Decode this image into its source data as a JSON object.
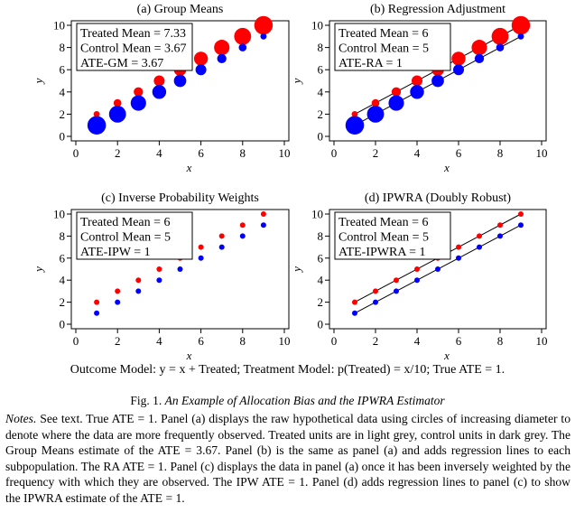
{
  "colors": {
    "treated": "#ff0000",
    "control": "#0000ff",
    "line": "#000000"
  },
  "chart_data": [
    {
      "type": "scatter",
      "title": "(a) Group Means",
      "xlabel": "x",
      "ylabel": "y",
      "xlim": [
        0,
        10
      ],
      "ylim": [
        0,
        10
      ],
      "xticks": [
        0,
        2,
        4,
        6,
        8,
        10
      ],
      "yticks": [
        0,
        2,
        4,
        6,
        8,
        10
      ],
      "annotations": [
        "Treated Mean = 7.33",
        "Control Mean = 3.67",
        "ATE-GM = 3.67"
      ],
      "regression_lines": false,
      "marker_size_encodes": "frequency",
      "series": [
        {
          "group": "treated",
          "x": [
            1,
            2,
            3,
            4,
            5,
            6,
            7,
            8,
            9
          ],
          "y": [
            2,
            3,
            4,
            5,
            6,
            7,
            8,
            9,
            10
          ],
          "size": [
            1,
            2,
            3,
            4,
            5,
            6,
            7,
            8,
            9
          ]
        },
        {
          "group": "control",
          "x": [
            1,
            2,
            3,
            4,
            5,
            6,
            7,
            8,
            9
          ],
          "y": [
            1,
            2,
            3,
            4,
            5,
            6,
            7,
            8,
            9
          ],
          "size": [
            9,
            8,
            7,
            6,
            5,
            4,
            3,
            2,
            1
          ]
        }
      ]
    },
    {
      "type": "scatter",
      "title": "(b) Regression Adjustment",
      "xlabel": "x",
      "ylabel": "y",
      "xlim": [
        0,
        10
      ],
      "ylim": [
        0,
        10
      ],
      "xticks": [
        0,
        2,
        4,
        6,
        8,
        10
      ],
      "yticks": [
        0,
        2,
        4,
        6,
        8,
        10
      ],
      "annotations": [
        "Treated Mean = 6",
        "Control Mean = 5",
        "ATE-RA = 1"
      ],
      "regression_lines": true,
      "marker_size_encodes": "frequency",
      "series": [
        {
          "group": "treated",
          "x": [
            1,
            2,
            3,
            4,
            5,
            6,
            7,
            8,
            9
          ],
          "y": [
            2,
            3,
            4,
            5,
            6,
            7,
            8,
            9,
            10
          ],
          "size": [
            1,
            2,
            3,
            4,
            5,
            6,
            7,
            8,
            9
          ]
        },
        {
          "group": "control",
          "x": [
            1,
            2,
            3,
            4,
            5,
            6,
            7,
            8,
            9
          ],
          "y": [
            1,
            2,
            3,
            4,
            5,
            6,
            7,
            8,
            9
          ],
          "size": [
            9,
            8,
            7,
            6,
            5,
            4,
            3,
            2,
            1
          ]
        }
      ]
    },
    {
      "type": "scatter",
      "title": "(c) Inverse Probability Weights",
      "xlabel": "x",
      "ylabel": "y",
      "xlim": [
        0,
        10
      ],
      "ylim": [
        0,
        10
      ],
      "xticks": [
        0,
        2,
        4,
        6,
        8,
        10
      ],
      "yticks": [
        0,
        2,
        4,
        6,
        8,
        10
      ],
      "annotations": [
        "Treated Mean = 6",
        "Control Mean = 5",
        "ATE-IPW = 1"
      ],
      "regression_lines": false,
      "marker_size_encodes": "equal weights",
      "series": [
        {
          "group": "treated",
          "x": [
            1,
            2,
            3,
            4,
            5,
            6,
            7,
            8,
            9
          ],
          "y": [
            2,
            3,
            4,
            5,
            6,
            7,
            8,
            9,
            10
          ],
          "size": [
            1,
            1,
            1,
            1,
            1,
            1,
            1,
            1,
            1
          ]
        },
        {
          "group": "control",
          "x": [
            1,
            2,
            3,
            4,
            5,
            6,
            7,
            8,
            9
          ],
          "y": [
            1,
            2,
            3,
            4,
            5,
            6,
            7,
            8,
            9
          ],
          "size": [
            1,
            1,
            1,
            1,
            1,
            1,
            1,
            1,
            1
          ]
        }
      ]
    },
    {
      "type": "scatter",
      "title": "(d) IPWRA (Doubly Robust)",
      "xlabel": "x",
      "ylabel": "y",
      "xlim": [
        0,
        10
      ],
      "ylim": [
        0,
        10
      ],
      "xticks": [
        0,
        2,
        4,
        6,
        8,
        10
      ],
      "yticks": [
        0,
        2,
        4,
        6,
        8,
        10
      ],
      "annotations": [
        "Treated Mean = 6",
        "Control Mean = 5",
        "ATE-IPWRA = 1"
      ],
      "regression_lines": true,
      "marker_size_encodes": "equal weights",
      "series": [
        {
          "group": "treated",
          "x": [
            1,
            2,
            3,
            4,
            5,
            6,
            7,
            8,
            9
          ],
          "y": [
            2,
            3,
            4,
            5,
            6,
            7,
            8,
            9,
            10
          ],
          "size": [
            1,
            1,
            1,
            1,
            1,
            1,
            1,
            1,
            1
          ]
        },
        {
          "group": "control",
          "x": [
            1,
            2,
            3,
            4,
            5,
            6,
            7,
            8,
            9
          ],
          "y": [
            1,
            2,
            3,
            4,
            5,
            6,
            7,
            8,
            9
          ],
          "size": [
            1,
            1,
            1,
            1,
            1,
            1,
            1,
            1,
            1
          ]
        }
      ]
    }
  ],
  "model_line": "Outcome Model: y = x + Treated; Treatment Model: p(Treated) = x/10; True ATE = 1.",
  "caption": {
    "label": "Fig. 1.",
    "title": "An Example of Allocation Bias and the IPWRA Estimator"
  },
  "notes": {
    "label": "Notes.",
    "text": "See text. True ATE = 1. Panel (a) displays the raw hypothetical data using circles of increasing diameter to denote where the data are more frequently observed. Treated units are in light grey, control units in dark grey. The Group Means estimate of the ATE = 3.67. Panel (b) is the same as panel (a) and adds regression lines to each subpopulation. The RA ATE = 1. Panel (c) displays the data in panel (a) once it has been inversely weighted by the frequency with which they are observed. The IPW ATE = 1. Panel (d) adds regression lines to panel (c) to show the IPWRA estimate of the ATE = 1."
  }
}
